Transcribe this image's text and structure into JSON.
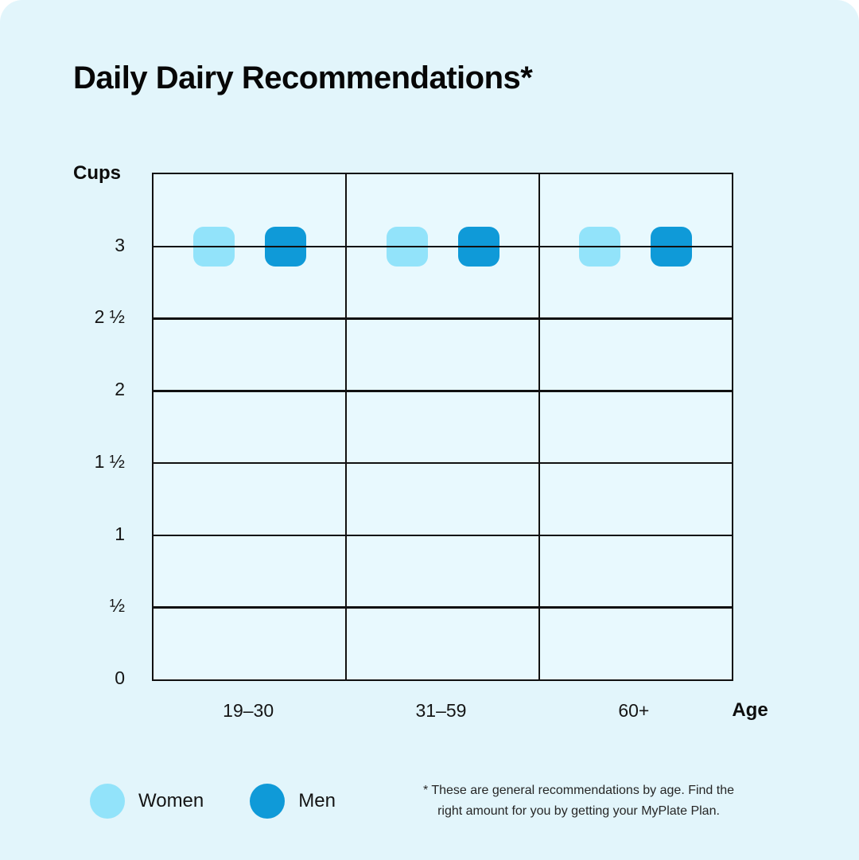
{
  "title": "Daily Dairy Recommendations*",
  "card_background": "#E2F5FB",
  "chart_data": {
    "type": "scatter",
    "title": "Daily Dairy Recommendations*",
    "xlabel": "Age",
    "ylabel": "Cups",
    "categories": [
      "19–30",
      "31–59",
      "60+"
    ],
    "series": [
      {
        "name": "Women",
        "color": "#92E3FA",
        "values": [
          3,
          3,
          3
        ]
      },
      {
        "name": "Men",
        "color": "#0F9AD8",
        "values": [
          3,
          3,
          3
        ]
      }
    ],
    "ylim": [
      0,
      3.5
    ],
    "yticks": [
      {
        "value": 3,
        "label": "3"
      },
      {
        "value": 2.5,
        "label": "2 ½"
      },
      {
        "value": 2,
        "label": "2"
      },
      {
        "value": 1.5,
        "label": "1 ½"
      },
      {
        "value": 1,
        "label": "1"
      },
      {
        "value": 0.5,
        "label": "½"
      },
      {
        "value": 0,
        "label": "0"
      }
    ],
    "grid": true,
    "legend_position": "bottom-left"
  },
  "legend": {
    "items": [
      {
        "label": "Women",
        "color": "#92E3FA"
      },
      {
        "label": "Men",
        "color": "#0F9AD8"
      }
    ]
  },
  "footnote": {
    "lines": [
      "* These are general recommendations by age. Find the",
      "right amount for you by getting your MyPlate Plan."
    ]
  }
}
